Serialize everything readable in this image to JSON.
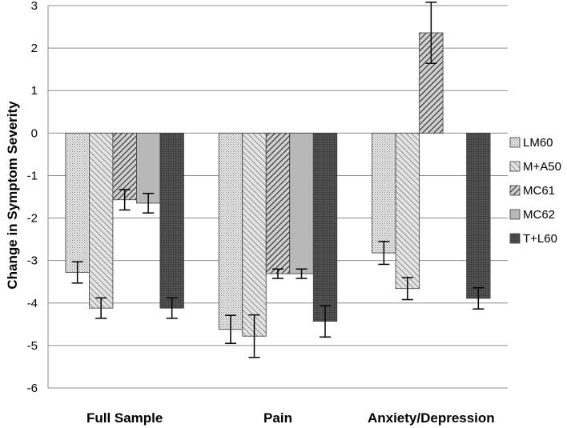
{
  "chart_data": {
    "type": "bar",
    "title": "",
    "xlabel": "",
    "ylabel": "Change in Symptom Severity",
    "ylim": [
      -6,
      3
    ],
    "yticks": [
      3,
      2,
      1,
      0,
      -1,
      -2,
      -3,
      -4,
      -5,
      -6
    ],
    "ytick_labels": [
      "3",
      "2",
      "1",
      "0",
      "-1",
      "-2",
      "-3",
      "-4",
      "-5",
      "-6"
    ],
    "grid": true,
    "legend_position": "right",
    "categories": [
      "Full Sample",
      "Pain",
      "Anxiety/Depression"
    ],
    "series": [
      {
        "name": "LM60",
        "pattern": "fine-dots",
        "values": [
          -3.28,
          -4.62,
          -2.82
        ],
        "errors": [
          0.25,
          0.33,
          0.27
        ]
      },
      {
        "name": "M+A50",
        "pattern": "diag-up",
        "values": [
          -4.12,
          -4.78,
          -3.66
        ],
        "errors": [
          0.24,
          0.5,
          0.26
        ]
      },
      {
        "name": "MC61",
        "pattern": "diag-down",
        "values": [
          -1.57,
          -3.31,
          2.36
        ],
        "errors": [
          0.24,
          0.11,
          0.72
        ]
      },
      {
        "name": "MC62",
        "pattern": "solid-gray",
        "values": [
          -1.65,
          -3.31,
          null
        ],
        "errors": [
          0.23,
          0.11,
          null
        ]
      },
      {
        "name": "T+L60",
        "pattern": "dark-dots",
        "values": [
          -4.12,
          -4.43,
          -3.89
        ],
        "errors": [
          0.24,
          0.37,
          0.25
        ]
      }
    ]
  }
}
